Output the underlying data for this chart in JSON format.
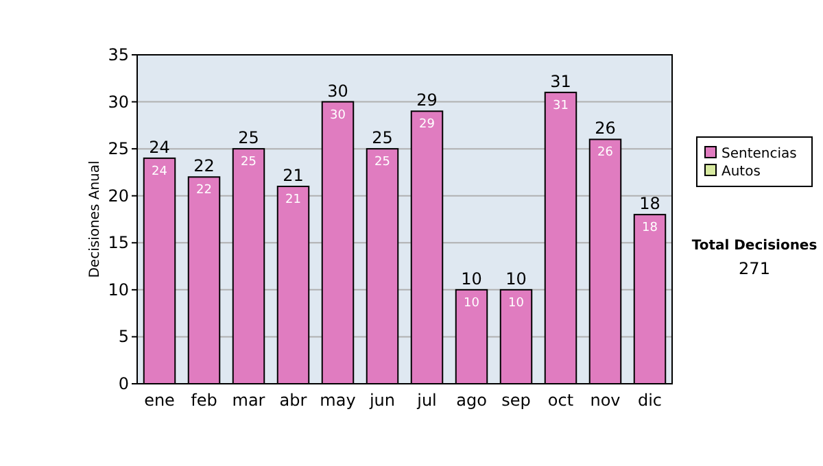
{
  "chart_data": {
    "type": "bar",
    "ylabel": "Decisiones Anual",
    "stacked": true,
    "categories": [
      "ene",
      "feb",
      "mar",
      "abr",
      "may",
      "jun",
      "jul",
      "ago",
      "sep",
      "oct",
      "nov",
      "dic"
    ],
    "series": [
      {
        "name": "Sentencias",
        "color": "#e07cc0",
        "values": [
          24,
          22,
          25,
          21,
          30,
          25,
          29,
          10,
          10,
          31,
          26,
          18
        ],
        "value_labels": [
          "24",
          "22",
          "25",
          "21",
          "30",
          "25",
          "29",
          "10",
          "10",
          "31",
          "26",
          "18"
        ]
      },
      {
        "name": "Autos",
        "color": "#d8eaa0",
        "values": [
          0,
          0,
          0,
          0,
          0,
          0,
          0,
          0,
          0,
          0,
          0,
          0
        ]
      }
    ],
    "totals": [
      "24",
      "22",
      "25",
      "21",
      "30",
      "25",
      "29",
      "10",
      "10",
      "31",
      "26",
      "18"
    ],
    "ylim": [
      0,
      35
    ],
    "yticks": [
      0,
      5,
      10,
      15,
      20,
      25,
      30,
      35
    ],
    "grid": "y",
    "legend": "right",
    "annotations": [
      "Total Decisiones",
      "271"
    ]
  }
}
